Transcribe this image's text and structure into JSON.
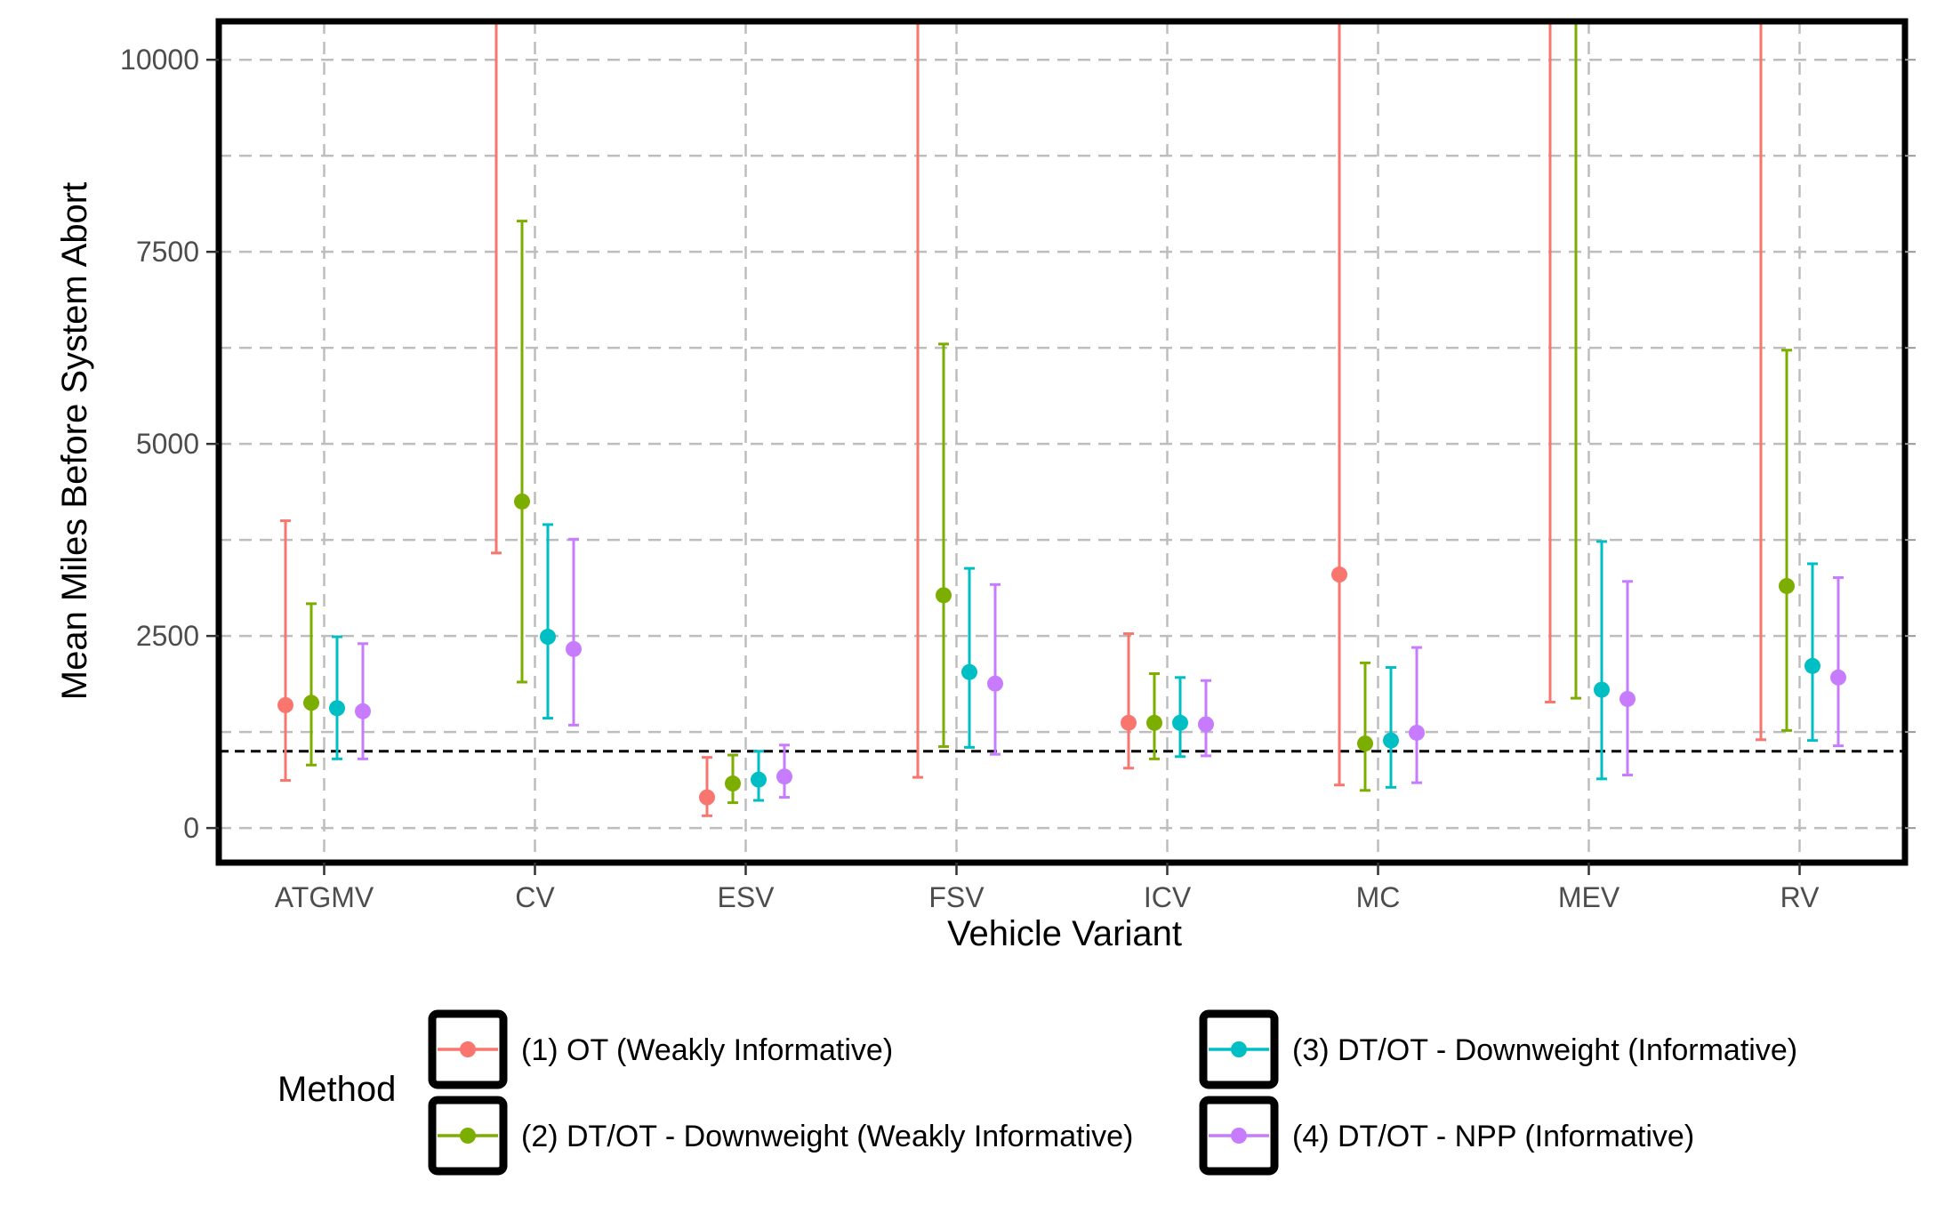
{
  "chart_data": {
    "type": "errorbar",
    "title": "",
    "xlabel": "Vehicle Variant",
    "ylabel": "Mean Miles Before System Abort",
    "ylim": [
      -450,
      10500
    ],
    "yticks": [
      0,
      2500,
      5000,
      7500,
      10000
    ],
    "reference_line": {
      "y": 1000,
      "style": "dashed",
      "color": "#000000"
    },
    "grid": true,
    "legend": {
      "title": "Method",
      "placement": "bottom"
    },
    "categories": [
      "ATGMV",
      "CV",
      "ESV",
      "FSV",
      "ICV",
      "MC",
      "MEV",
      "RV"
    ],
    "series": [
      {
        "name": "(1) OT (Weakly Informative)",
        "color": "#F8766D",
        "values": [
          1600,
          null,
          400,
          null,
          1370,
          3300,
          null,
          null
        ],
        "lower": [
          620,
          3580,
          160,
          660,
          780,
          560,
          1640,
          1150
        ],
        "upper": [
          4000,
          10500,
          920,
          10500,
          2530,
          10500,
          10500,
          10500
        ]
      },
      {
        "name": "(2) DT/OT - Downweight (Weakly Informative)",
        "color": "#7CAE00",
        "values": [
          1630,
          4250,
          580,
          3030,
          1370,
          1100,
          null,
          3150
        ],
        "lower": [
          820,
          1900,
          330,
          1060,
          900,
          490,
          1690,
          1270
        ],
        "upper": [
          2920,
          7900,
          950,
          6300,
          2010,
          2150,
          10500,
          6220
        ]
      },
      {
        "name": "(3) DT/OT - Downweight (Informative)",
        "color": "#00BFC4",
        "values": [
          1560,
          2490,
          630,
          2030,
          1370,
          1140,
          1800,
          2110
        ],
        "lower": [
          900,
          1430,
          360,
          1050,
          930,
          530,
          640,
          1140
        ],
        "upper": [
          2490,
          3950,
          1000,
          3380,
          1960,
          2090,
          3730,
          3440
        ]
      },
      {
        "name": "(4) DT/OT - NPP (Informative)",
        "color": "#C77CFF",
        "values": [
          1520,
          2330,
          670,
          1880,
          1350,
          1240,
          1680,
          1960
        ],
        "lower": [
          900,
          1340,
          400,
          960,
          940,
          590,
          690,
          1070
        ],
        "upper": [
          2400,
          3760,
          1080,
          3170,
          1920,
          2350,
          3210,
          3260
        ]
      }
    ]
  }
}
